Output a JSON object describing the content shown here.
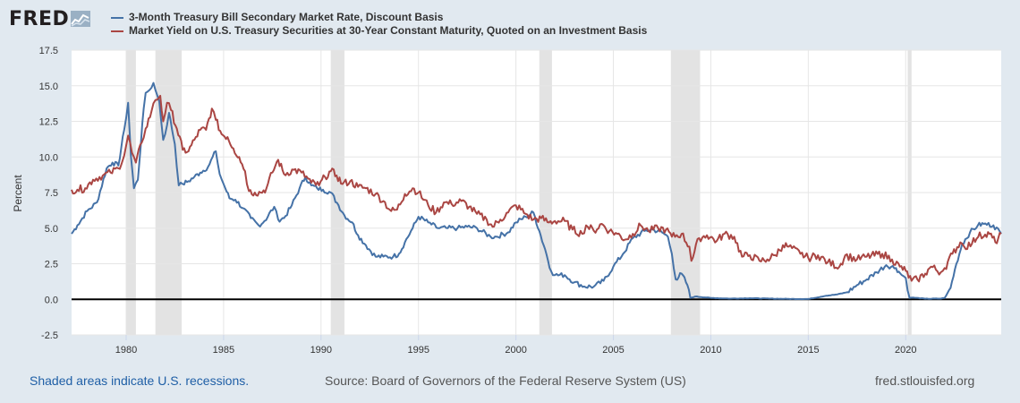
{
  "logo": {
    "text": "FRED",
    "mark_icon": "chart-line-icon"
  },
  "legend": [
    {
      "label": "3-Month Treasury Bill Secondary Market Rate, Discount Basis",
      "color": "#4572a7"
    },
    {
      "label": "Market Yield on U.S. Treasury Securities at 30-Year Constant Maturity, Quoted on an Investment Basis",
      "color": "#aa4643"
    }
  ],
  "footer": {
    "recession_note": "Shaded areas indicate U.S. recessions.",
    "source": "Source: Board of Governors of the Federal Reserve System (US)",
    "site": "fred.stlouisfed.org"
  },
  "chart_data": {
    "type": "line",
    "ylabel": "Percent",
    "ylim": [
      -2.5,
      17.5
    ],
    "yticks": [
      -2.5,
      0.0,
      2.5,
      5.0,
      7.5,
      10.0,
      12.5,
      15.0,
      17.5
    ],
    "xlim": [
      1977.2,
      2024.9
    ],
    "xticks": [
      1980,
      1985,
      1990,
      1995,
      2000,
      2005,
      2010,
      2015,
      2020
    ],
    "grid": true,
    "recessions": [
      [
        1980.0,
        1980.5
      ],
      [
        1981.5,
        1982.85
      ],
      [
        1990.5,
        1991.2
      ],
      [
        2001.2,
        2001.85
      ],
      [
        2007.95,
        2009.45
      ],
      [
        2020.1,
        2020.3
      ]
    ],
    "series": [
      {
        "name": "3-Month Treasury Bill Secondary Market Rate, Discount Basis",
        "color": "#4572a7",
        "x": [
          1977.2,
          1977.5,
          1978.0,
          1978.5,
          1979.0,
          1979.3,
          1979.6,
          1979.9,
          1980.1,
          1980.25,
          1980.4,
          1980.6,
          1980.9,
          1981.0,
          1981.2,
          1981.4,
          1981.5,
          1981.7,
          1981.9,
          1982.0,
          1982.2,
          1982.5,
          1982.7,
          1982.9,
          1983.2,
          1983.5,
          1983.8,
          1984.2,
          1984.6,
          1984.8,
          1985.0,
          1985.3,
          1985.6,
          1986.0,
          1986.4,
          1986.8,
          1987.1,
          1987.6,
          1987.8,
          1988.1,
          1988.5,
          1988.9,
          1989.2,
          1989.5,
          1989.8,
          1990.1,
          1990.5,
          1990.9,
          1991.2,
          1991.6,
          1991.9,
          1992.3,
          1992.8,
          1993.2,
          1993.7,
          1994.0,
          1994.3,
          1994.7,
          1995.0,
          1995.5,
          1996.0,
          1996.5,
          1997.0,
          1997.5,
          1998.0,
          1998.7,
          1999.0,
          1999.6,
          2000.0,
          2000.5,
          2000.9,
          2001.2,
          2001.5,
          2001.8,
          2002.0,
          2002.5,
          2003.0,
          2003.5,
          2004.0,
          2004.5,
          2005.0,
          2005.5,
          2006.0,
          2006.6,
          2007.0,
          2007.5,
          2007.8,
          2008.0,
          2008.2,
          2008.5,
          2008.8,
          2008.95,
          2009.2,
          2010.0,
          2011.0,
          2012.0,
          2013.0,
          2014.0,
          2015.0,
          2015.9,
          2016.5,
          2017.0,
          2017.5,
          2018.0,
          2018.5,
          2019.0,
          2019.5,
          2019.8,
          2020.0,
          2020.2,
          2020.4,
          2021.0,
          2021.8,
          2022.0,
          2022.3,
          2022.6,
          2022.9,
          2023.3,
          2023.7,
          2024.0,
          2024.5,
          2024.9
        ],
        "values": [
          4.6,
          5.2,
          6.2,
          6.8,
          9.2,
          9.6,
          9.4,
          11.9,
          13.8,
          10.0,
          7.8,
          8.4,
          13.4,
          14.5,
          14.7,
          15.2,
          14.7,
          13.9,
          11.2,
          11.6,
          13.1,
          10.9,
          8.0,
          8.1,
          8.3,
          8.6,
          8.9,
          9.3,
          10.4,
          8.8,
          8.1,
          7.1,
          7.0,
          6.4,
          5.7,
          5.2,
          5.5,
          6.5,
          5.6,
          5.7,
          6.6,
          7.8,
          8.6,
          8.0,
          7.8,
          7.7,
          7.5,
          6.6,
          5.9,
          5.4,
          4.5,
          3.8,
          3.0,
          3.0,
          3.0,
          3.2,
          4.0,
          5.0,
          5.8,
          5.4,
          5.0,
          5.0,
          5.0,
          5.1,
          5.0,
          4.4,
          4.4,
          4.7,
          5.4,
          5.8,
          6.1,
          4.8,
          3.5,
          2.0,
          1.7,
          1.7,
          1.2,
          0.9,
          0.9,
          1.3,
          2.3,
          3.2,
          4.3,
          4.8,
          4.9,
          4.7,
          4.4,
          3.2,
          1.4,
          1.8,
          1.0,
          0.1,
          0.2,
          0.1,
          0.05,
          0.08,
          0.05,
          0.03,
          0.02,
          0.25,
          0.35,
          0.5,
          1.0,
          1.4,
          1.9,
          2.4,
          2.2,
          1.7,
          1.5,
          0.1,
          0.12,
          0.04,
          0.05,
          0.1,
          0.8,
          2.5,
          3.9,
          4.7,
          5.2,
          5.3,
          5.2,
          4.6
        ]
      },
      {
        "name": "Market Yield on U.S. Treasury Securities at 30-Year Constant Maturity, Quoted on an Investment Basis",
        "color": "#aa4643",
        "x": [
          1977.2,
          1977.5,
          1977.9,
          1978.3,
          1978.8,
          1979.2,
          1979.6,
          1979.9,
          1980.1,
          1980.3,
          1980.5,
          1980.8,
          1981.0,
          1981.3,
          1981.5,
          1981.75,
          1981.9,
          1982.1,
          1982.3,
          1982.6,
          1982.9,
          1983.2,
          1983.5,
          1983.8,
          1984.1,
          1984.4,
          1984.6,
          1984.9,
          1985.2,
          1985.5,
          1985.8,
          1986.1,
          1986.3,
          1986.6,
          1986.9,
          1987.2,
          1987.5,
          1987.8,
          1988.1,
          1988.6,
          1989.0,
          1989.5,
          1989.9,
          1990.2,
          1990.5,
          1990.8,
          1991.1,
          1991.5,
          1991.9,
          1992.3,
          1992.8,
          1993.2,
          1993.6,
          1993.9,
          1994.3,
          1994.7,
          1995.0,
          1995.5,
          1995.9,
          1996.3,
          1996.7,
          1997.2,
          1997.6,
          1998.0,
          1998.5,
          1998.8,
          1999.2,
          1999.6,
          2000.0,
          2000.5,
          2000.9,
          2001.3,
          2001.7,
          2002.0,
          2002.5,
          2002.9,
          2003.4,
          2003.6,
          2004.0,
          2004.4,
          2004.8,
          2005.2,
          2005.6,
          2006.0,
          2006.4,
          2006.8,
          2007.3,
          2007.7,
          2008.0,
          2008.5,
          2008.9,
          2009.0,
          2009.4,
          2009.8,
          2010.3,
          2010.7,
          2011.2,
          2011.6,
          2012.0,
          2012.5,
          2012.9,
          2013.3,
          2013.7,
          2014.0,
          2014.6,
          2015.0,
          2015.5,
          2016.0,
          2016.6,
          2016.9,
          2017.5,
          2018.0,
          2018.8,
          2019.3,
          2019.7,
          2020.0,
          2020.3,
          2020.6,
          2021.0,
          2021.3,
          2021.8,
          2022.0,
          2022.4,
          2022.8,
          2023.0,
          2023.4,
          2023.8,
          2024.0,
          2024.3,
          2024.6,
          2024.9
        ],
        "values": [
          7.7,
          7.7,
          7.8,
          8.4,
          8.7,
          8.9,
          9.2,
          10.1,
          11.5,
          10.3,
          9.6,
          11.0,
          12.0,
          13.2,
          14.0,
          14.3,
          12.5,
          13.8,
          13.3,
          12.0,
          10.5,
          10.4,
          11.2,
          11.9,
          11.9,
          13.4,
          12.6,
          11.6,
          11.4,
          10.6,
          10.0,
          9.0,
          7.6,
          7.5,
          7.5,
          7.8,
          8.9,
          9.8,
          8.8,
          9.1,
          8.9,
          8.2,
          8.0,
          8.6,
          9.0,
          8.7,
          8.1,
          8.3,
          7.9,
          7.8,
          7.4,
          6.9,
          6.2,
          6.3,
          7.4,
          7.8,
          7.5,
          6.6,
          6.1,
          6.8,
          6.7,
          6.9,
          6.5,
          6.0,
          5.6,
          5.1,
          5.6,
          6.1,
          6.6,
          6.0,
          5.6,
          5.7,
          5.4,
          5.5,
          5.5,
          4.9,
          4.6,
          5.2,
          4.8,
          5.3,
          4.8,
          4.6,
          4.2,
          4.6,
          5.2,
          4.8,
          5.0,
          4.9,
          4.4,
          4.6,
          3.7,
          2.7,
          4.3,
          4.5,
          4.1,
          4.6,
          4.4,
          3.0,
          3.1,
          2.7,
          2.8,
          3.1,
          3.8,
          3.7,
          3.2,
          2.9,
          3.1,
          2.6,
          2.3,
          3.1,
          2.8,
          3.0,
          3.2,
          2.8,
          2.3,
          2.0,
          1.3,
          1.4,
          1.8,
          2.3,
          1.9,
          2.2,
          3.2,
          4.0,
          3.7,
          3.9,
          4.7,
          4.4,
          4.6,
          4.0,
          4.6
        ]
      }
    ]
  }
}
